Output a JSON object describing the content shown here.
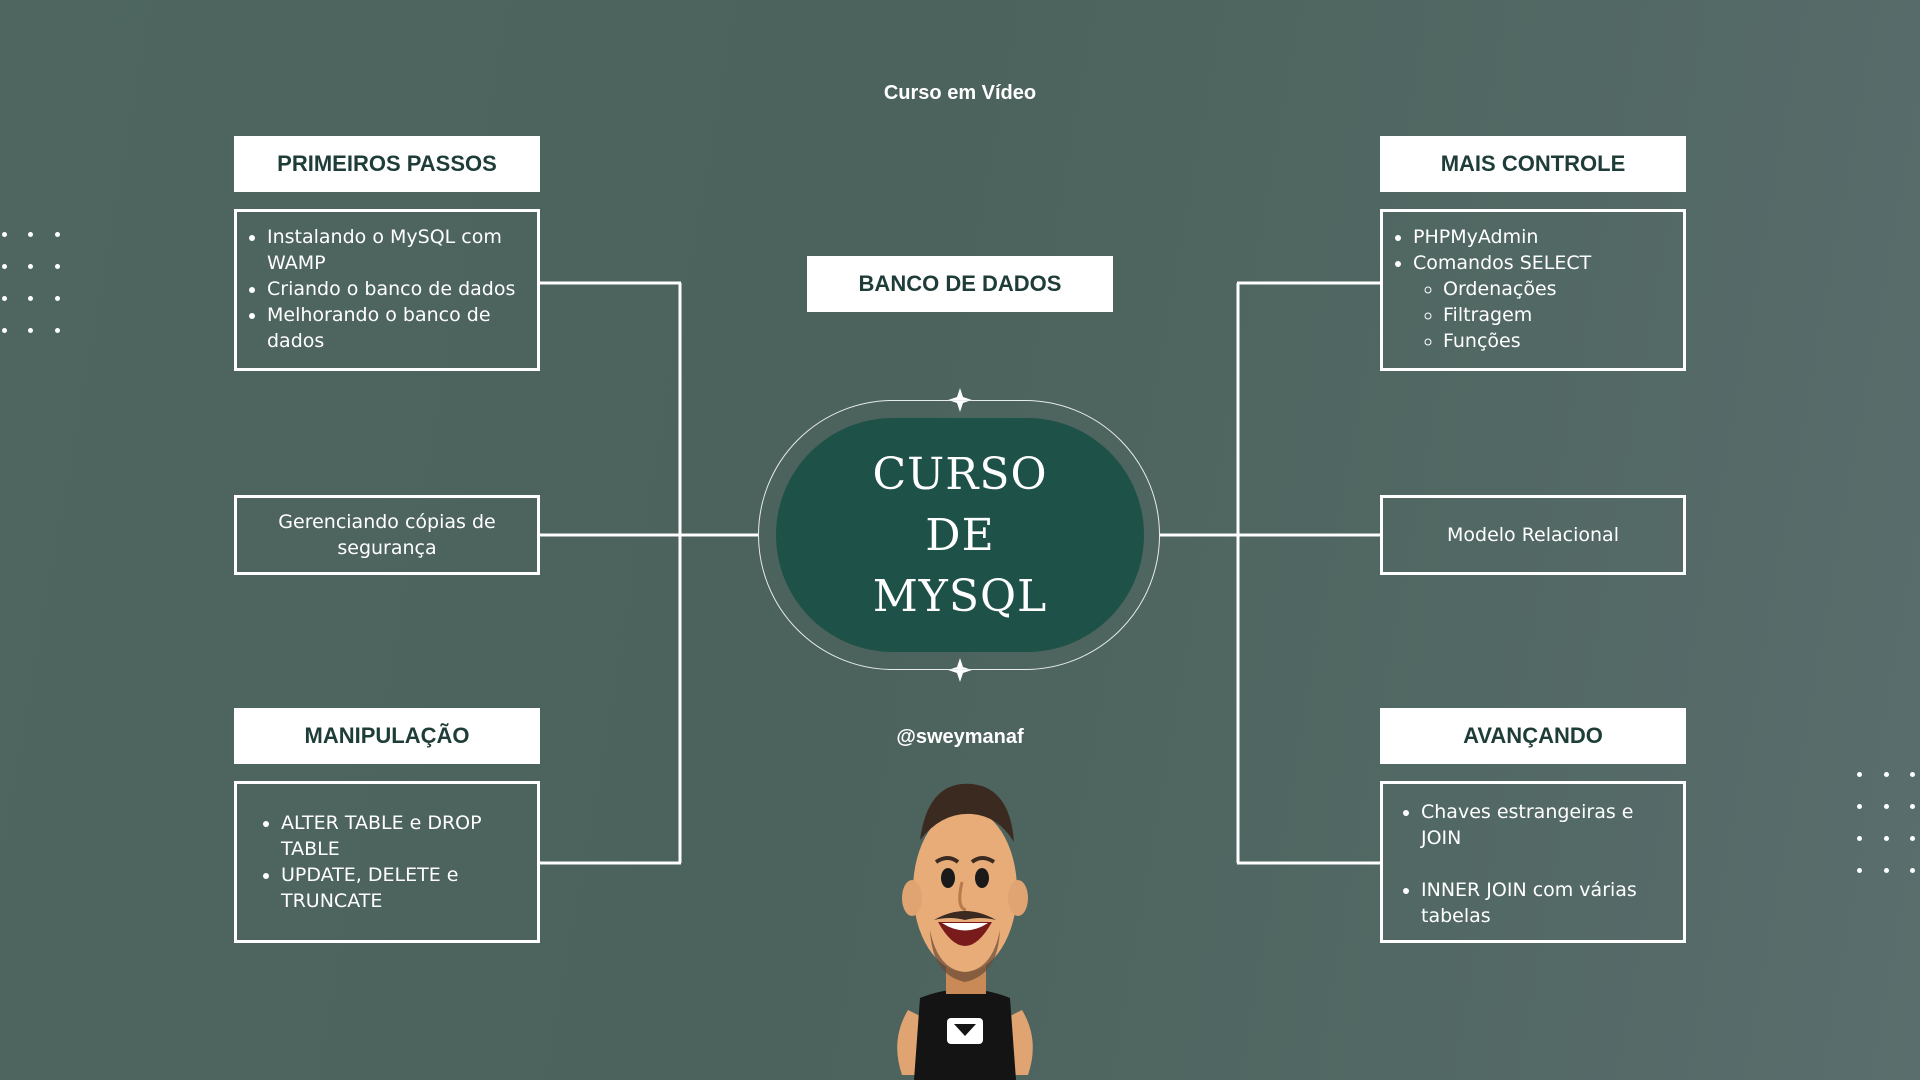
{
  "brand": "Curso em Vídeo",
  "handle": "@sweymanaf",
  "center": {
    "lines": [
      "CURSO",
      "DE",
      "MYSQL"
    ]
  },
  "top_label": "BANCO DE DADOS",
  "left": {
    "primeiros_title": "PRIMEIROS PASSOS",
    "primeiros_items": [
      "Instalando o MySQL com WAMP",
      "Criando o banco de dados",
      "Melhorando o banco de dados"
    ],
    "backup_text": "Gerenciando cópias de segurança",
    "manip_title": "MANIPULAÇÃO",
    "manip_items": [
      "ALTER TABLE e DROP TABLE",
      "UPDATE, DELETE e TRUNCATE"
    ]
  },
  "right": {
    "controle_title": "MAIS CONTROLE",
    "controle_items": [
      "PHPMyAdmin",
      "Comandos SELECT"
    ],
    "controle_subitems": [
      "Ordenações",
      "Filtragem",
      "Funções"
    ],
    "modelo_text": "Modelo Relacional",
    "avancando_title": "AVANÇANDO",
    "avancando_items": [
      "Chaves estrangeiras e JOIN",
      "INNER JOIN com várias tabelas"
    ]
  },
  "colors": {
    "background": "#4f6660",
    "oval": "#1e5148",
    "title_text": "#1f3d38",
    "lines": "#ffffff"
  }
}
